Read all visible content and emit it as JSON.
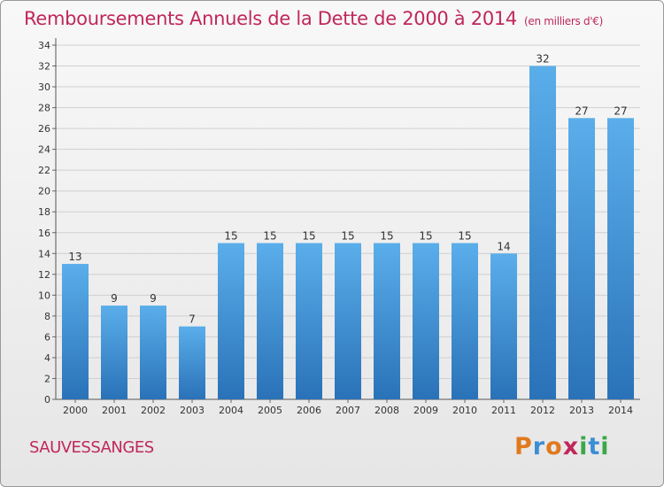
{
  "header": {
    "title": "Remboursements Annuels de la Dette de 2000 à 2014",
    "unit": "(en milliers d'€)"
  },
  "footer": {
    "commune": "SAUVESSANGES",
    "logo_text": "Proxiti",
    "logo_colors": [
      "#e07a1f",
      "#3a8ed4",
      "#e07a1f",
      "#c0275b",
      "#3aa84a",
      "#3a8ed4",
      "#3aa84a"
    ]
  },
  "chart_data": {
    "type": "bar",
    "categories": [
      "2000",
      "2001",
      "2002",
      "2003",
      "2004",
      "2005",
      "2006",
      "2007",
      "2008",
      "2009",
      "2010",
      "2011",
      "2012",
      "2013",
      "2014"
    ],
    "values": [
      13,
      9,
      9,
      7,
      15,
      15,
      15,
      15,
      15,
      15,
      15,
      14,
      32,
      27,
      27
    ],
    "data_labels": [
      "13",
      "9",
      "9",
      "7",
      "15",
      "15",
      "15",
      "15",
      "15",
      "15",
      "15",
      "14",
      "32",
      "27",
      "27"
    ],
    "y_ticks": [
      "0",
      "2",
      "4",
      "6",
      "8",
      "10",
      "12",
      "14",
      "16",
      "18",
      "20",
      "22",
      "24",
      "26",
      "28",
      "30",
      "32",
      "34"
    ],
    "ylim": [
      0,
      34
    ],
    "grid": true,
    "bar_color": "#3b8fd6",
    "bar_color_light": "#5aaeea",
    "bar_color_dark": "#2a72b8"
  }
}
